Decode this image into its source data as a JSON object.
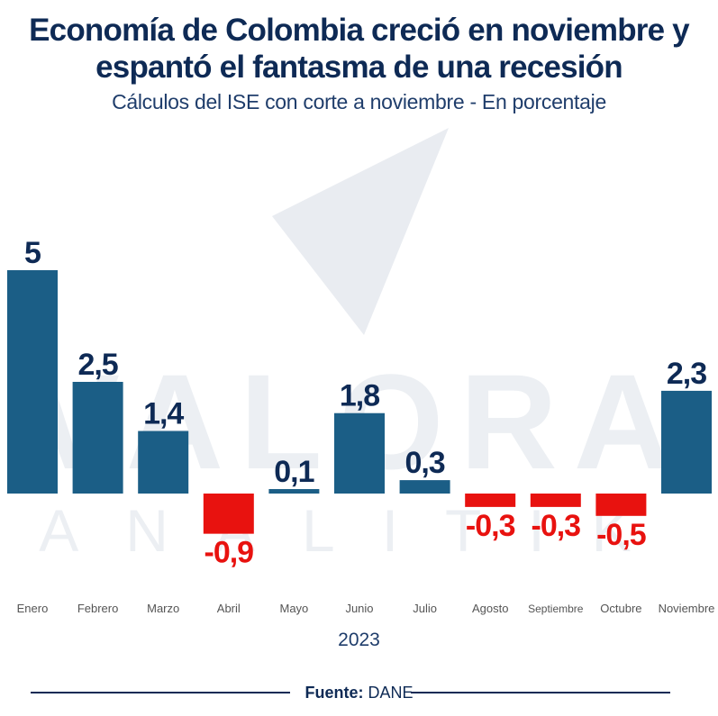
{
  "header": {
    "title_line1": "Economía de Colombia creció en noviembre y",
    "title_line2": "espantó el fantasma de una recesión",
    "subtitle": "Cálculos del ISE con corte a noviembre - En porcentaje"
  },
  "watermark": {
    "line1": "VALORA",
    "line2": "ANALITIK"
  },
  "colors": {
    "positive": "#1b5e86",
    "negative": "#e8120f",
    "label_positive": "#0e2a55",
    "label_negative": "#e8120f",
    "axis_label": "#555555"
  },
  "chart_data": {
    "type": "bar",
    "title": "Economía de Colombia creció en noviembre y espantó el fantasma de una recesión",
    "subtitle": "Cálculos del ISE con corte a noviembre - En porcentaje",
    "xlabel": "2023",
    "ylabel": "",
    "categories": [
      "Enero",
      "Febrero",
      "Marzo",
      "Abril",
      "Mayo",
      "Junio",
      "Julio",
      "Agosto",
      "Septiembre",
      "Octubre",
      "Noviembre"
    ],
    "values": [
      5,
      2.5,
      1.4,
      -0.9,
      0.1,
      1.8,
      0.3,
      -0.3,
      -0.3,
      -0.5,
      2.3
    ],
    "value_labels": [
      "5",
      "2,5",
      "1,4",
      "-0,9",
      "0,1",
      "1,8",
      "0,3",
      "-0,3",
      "-0,3",
      "-0,5",
      "2,3"
    ],
    "ylim": [
      -0.9,
      5
    ],
    "grid": false,
    "legend": "none"
  },
  "footer": {
    "year": "2023",
    "source_label": "Fuente:",
    "source_value": "DANE"
  }
}
